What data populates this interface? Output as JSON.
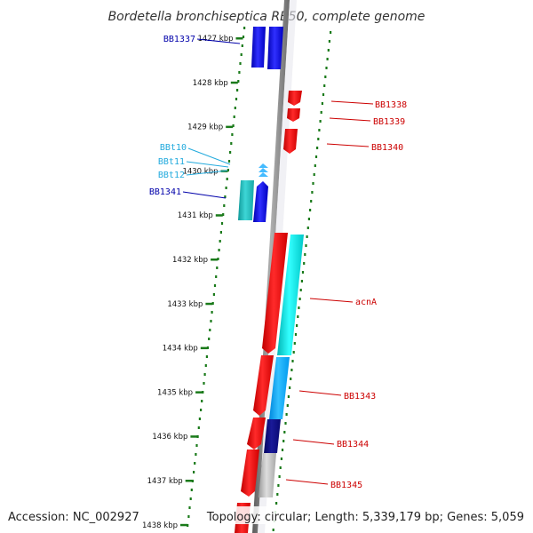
{
  "title": "Bordetella bronchiseptica RB50, complete genome",
  "accession": "Accession: NC_002927",
  "topology": "Topology: circular; Length: 5,339,179 bp; Genes: 5,059",
  "colors": {
    "backbone": "#8a8a8a",
    "tick": "#1a7a1a",
    "forward_gene": "#1010e0",
    "reverse_gene": "#e01010",
    "rna": "#22cccc",
    "trna": "#4dc3ff",
    "cyan_gene": "#00e5e5",
    "light_blue_gene": "#00aaff",
    "dark_blue_gene": "#0a0a7a",
    "grey_gene": "#b8b8b8"
  },
  "ticks": [
    {
      "label": "1427 kbp"
    },
    {
      "label": "1428 kbp"
    },
    {
      "label": "1429 kbp"
    },
    {
      "label": "1430 kbp"
    },
    {
      "label": "1431 kbp"
    },
    {
      "label": "1432 kbp"
    },
    {
      "label": "1433 kbp"
    },
    {
      "label": "1434 kbp"
    },
    {
      "label": "1435 kbp"
    },
    {
      "label": "1436 kbp"
    },
    {
      "label": "1437 kbp"
    },
    {
      "label": "1438 kbp"
    }
  ],
  "gene_labels": [
    {
      "name": "BB1337",
      "color": "#0000aa"
    },
    {
      "name": "BB1338",
      "color": "#cc0000"
    },
    {
      "name": "BB1339",
      "color": "#cc0000"
    },
    {
      "name": "BB1340",
      "color": "#cc0000"
    },
    {
      "name": "BBt10",
      "color": "#22aadd"
    },
    {
      "name": "BBt11",
      "color": "#22aadd"
    },
    {
      "name": "BBt12",
      "color": "#22aadd"
    },
    {
      "name": "BB1341",
      "color": "#0000aa"
    },
    {
      "name": "acnA",
      "color": "#cc0000"
    },
    {
      "name": "BB1343",
      "color": "#cc0000"
    },
    {
      "name": "BB1344",
      "color": "#cc0000"
    },
    {
      "name": "BB1345",
      "color": "#cc0000"
    }
  ]
}
